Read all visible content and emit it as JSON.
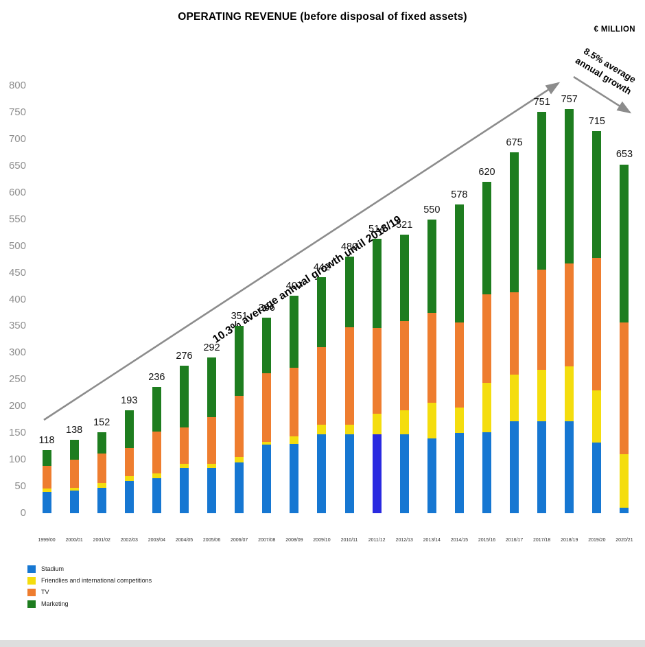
{
  "title": "OPERATING REVENUE (before disposal of fixed assets)",
  "unit_label": "€ MILLION",
  "annotations": {
    "growth_main": "10.3% average annual growth until 2018/19",
    "growth_recent_line1": "8.5% average",
    "growth_recent_line2": "annual growth"
  },
  "legend": [
    {
      "label": "Stadium",
      "color": "#1677d2"
    },
    {
      "label": "Friendlies and international competitions",
      "color": "#f4dd0e"
    },
    {
      "label": "TV",
      "color": "#ee7d2f"
    },
    {
      "label": "Marketing",
      "color": "#1e7d1f"
    }
  ],
  "chart_data": {
    "type": "bar",
    "stacked": true,
    "title": "OPERATING REVENUE (before disposal of fixed assets)",
    "ylabel": "€ MILLION",
    "ylim": [
      0,
      800
    ],
    "ytick_step": 50,
    "grid": false,
    "legend_position": "bottom-left",
    "categories": [
      "1999/00",
      "2000/01",
      "2001/02",
      "2002/03",
      "2003/04",
      "2004/05",
      "2005/06",
      "2006/07",
      "2007/08",
      "2008/09",
      "2009/10",
      "2010/11",
      "2011/12",
      "2012/13",
      "2013/14",
      "2014/15",
      "2015/16",
      "2016/17",
      "2017/18",
      "2018/19",
      "2019/20",
      "2020/21"
    ],
    "totals": [
      118,
      138,
      152,
      193,
      236,
      276,
      292,
      351,
      366,
      407,
      442,
      480,
      514,
      521,
      550,
      578,
      620,
      675,
      751,
      757,
      715,
      653
    ],
    "series": [
      {
        "name": "Stadium",
        "color": "#1677d2",
        "values": [
          40,
          42,
          48,
          60,
          65,
          85,
          85,
          95,
          128,
          130,
          148,
          148,
          148,
          148,
          140,
          150,
          152,
          172,
          172,
          172,
          132,
          10
        ]
      },
      {
        "name": "Friendlies and international competitions",
        "color": "#f4dd0e",
        "values": [
          6,
          6,
          8,
          10,
          10,
          8,
          8,
          10,
          6,
          14,
          18,
          18,
          38,
          45,
          67,
          48,
          92,
          88,
          96,
          103,
          98,
          100
        ]
      },
      {
        "name": "TV",
        "color": "#ee7d2f",
        "values": [
          42,
          52,
          56,
          52,
          78,
          67,
          87,
          115,
          128,
          128,
          145,
          182,
          161,
          167,
          168,
          159,
          166,
          153,
          188,
          192,
          248,
          247
        ]
      },
      {
        "name": "Marketing",
        "color": "#1e7d1f",
        "values": [
          30,
          38,
          40,
          71,
          83,
          116,
          112,
          131,
          104,
          135,
          131,
          132,
          167,
          161,
          175,
          221,
          210,
          262,
          295,
          290,
          237,
          296
        ]
      }
    ],
    "highlight_index": 12,
    "highlight_stadium_color": "#2a2ae0",
    "arrow_color": "#8c8c8c"
  }
}
